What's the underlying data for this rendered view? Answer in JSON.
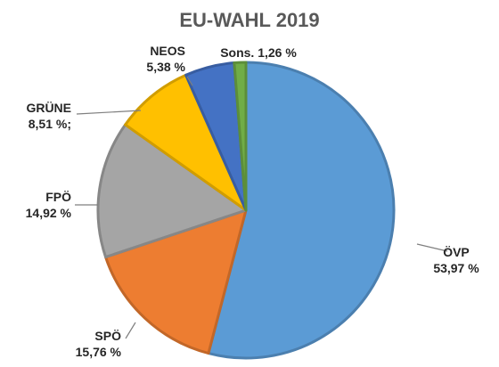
{
  "chart_data": {
    "type": "pie",
    "title": "EU-WAHL 2019",
    "slices": [
      {
        "name": "ÖVP",
        "value": 53.97,
        "value_label": "53,97 %",
        "color": "#5b9bd5"
      },
      {
        "name": "SPÖ",
        "value": 15.76,
        "value_label": "15,76 %",
        "color": "#ed7d31"
      },
      {
        "name": "FPÖ",
        "value": 14.92,
        "value_label": "14,92 %",
        "color": "#a5a5a5"
      },
      {
        "name": "GRÜNE",
        "value": 8.51,
        "value_label": "8,51 %;",
        "color": "#ffc000"
      },
      {
        "name": "NEOS",
        "value": 5.38,
        "value_label": "5,38 %",
        "color": "#4472c4"
      },
      {
        "name": "Sons.",
        "value": 1.26,
        "value_label": "1,26 %",
        "color": "#70ad47"
      }
    ]
  }
}
